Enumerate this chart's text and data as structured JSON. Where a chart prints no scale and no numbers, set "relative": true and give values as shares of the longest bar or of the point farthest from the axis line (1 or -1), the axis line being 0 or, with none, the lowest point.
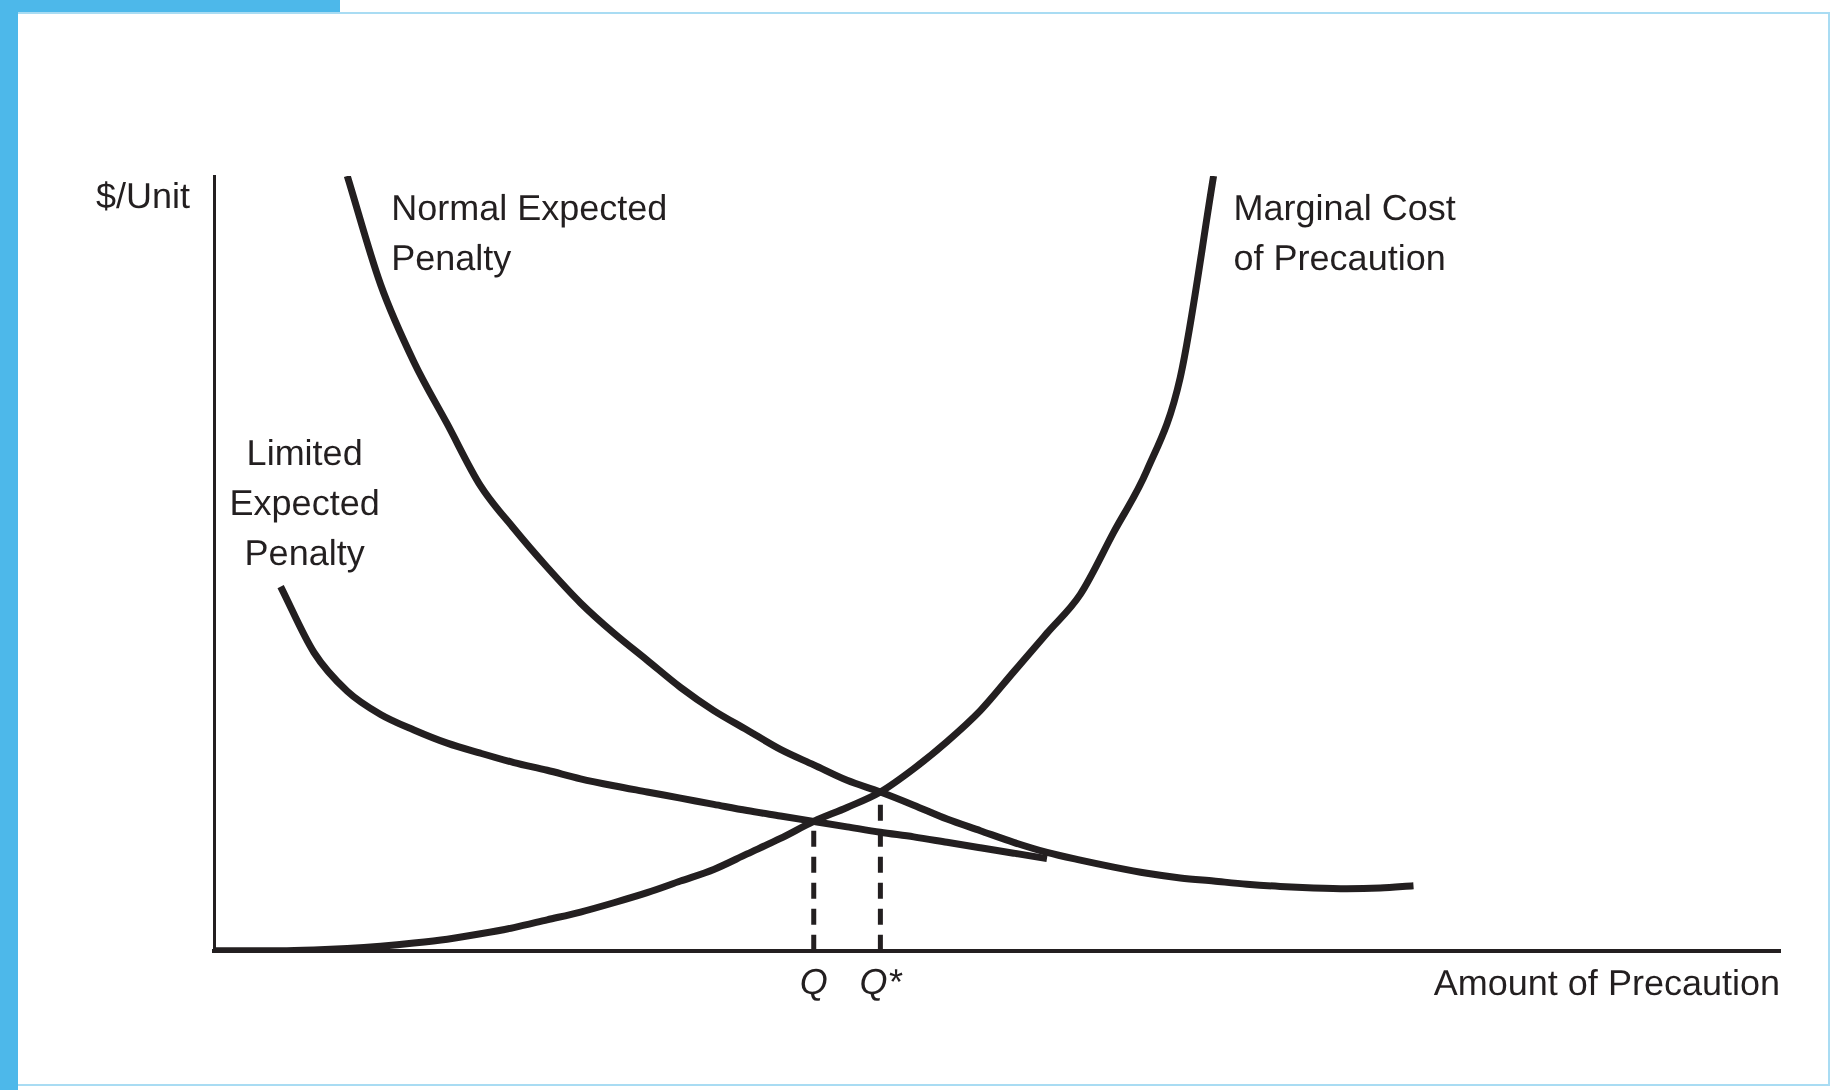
{
  "chart_data": {
    "type": "line",
    "relative": true,
    "xlabel": "Amount of Precaution",
    "ylabel": "$/Unit",
    "categories": [
      null,
      null,
      null,
      null,
      null,
      null,
      null,
      null,
      null,
      null,
      null,
      null,
      null,
      null,
      null,
      null,
      null,
      null,
      "Q",
      null,
      "Q*",
      null,
      null,
      null,
      null,
      null,
      null,
      null,
      null,
      null,
      null,
      null,
      null,
      null,
      null,
      null,
      null,
      null,
      null,
      null,
      null,
      null,
      null,
      null,
      null,
      null,
      null,
      null
    ],
    "grid": false,
    "legend": false,
    "marker": "none",
    "line_style": "solid",
    "series": [
      {
        "name": "Normal Expected Penalty",
        "color": "#231f20",
        "values": [
          null,
          null,
          null,
          null,
          1,
          0.86,
          0.76,
          0.68,
          0.6,
          0.545,
          0.495,
          0.449,
          0.41,
          0.375,
          0.34,
          0.31,
          0.285,
          0.26,
          0.24,
          0.22,
          0.205,
          0.188,
          0.17,
          0.155,
          0.14,
          0.127,
          0.117,
          0.108,
          0.1,
          0.094,
          0.09,
          0.086,
          0.083,
          0.081,
          0.08,
          0.081,
          0.084,
          null,
          null,
          null,
          null,
          null,
          null,
          null,
          null,
          null,
          null,
          null
        ]
      },
      {
        "name": "Marginal Cost of Precaution",
        "color": "#231f20",
        "values": [
          0,
          0,
          0,
          0.001,
          0.003,
          0.006,
          0.01,
          0.015,
          0.022,
          0.03,
          0.04,
          0.05,
          0.062,
          0.075,
          0.09,
          0.105,
          0.125,
          0.145,
          0.167,
          0.185,
          0.205,
          0.235,
          0.27,
          0.31,
          0.36,
          0.41,
          0.46,
          0.54,
          0.62,
          0.74,
          1,
          null,
          null,
          null,
          null,
          null,
          null,
          null,
          null,
          null,
          null,
          null,
          null,
          null,
          null,
          null,
          null,
          null
        ]
      },
      {
        "name": "Limited Expected Penalty",
        "color": "#231f20",
        "values": [
          null,
          null,
          0.47,
          0.385,
          0.335,
          0.305,
          0.285,
          0.268,
          0.255,
          0.243,
          0.233,
          0.222,
          0.213,
          0.205,
          0.197,
          0.189,
          0.181,
          0.174,
          0.167,
          0.16,
          0.153,
          0.147,
          0.14,
          0.133,
          0.126,
          0.119,
          null,
          null,
          null,
          null,
          null,
          null,
          null,
          null,
          null,
          null,
          null,
          null,
          null,
          null,
          null,
          null,
          null,
          null,
          null,
          null,
          null,
          null
        ]
      }
    ],
    "ref_lines": [
      {
        "axis": "x",
        "value": "Q",
        "line_style": "dashed",
        "color": "#231f20"
      },
      {
        "axis": "x",
        "value": "Q*",
        "line_style": "dashed",
        "color": "#231f20"
      }
    ]
  }
}
